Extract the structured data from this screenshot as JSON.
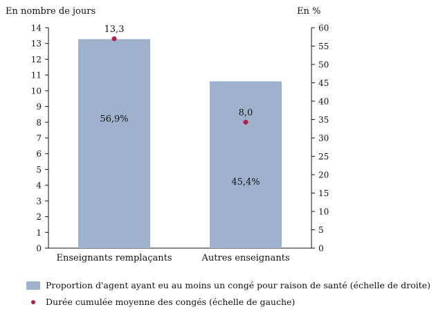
{
  "chart_data": {
    "type": "bar",
    "categories": [
      "Enseignants remplaçants",
      "Autres enseignants"
    ],
    "left_axis_label": "En nombre de jours",
    "right_axis_label": "En %",
    "left_ylim": [
      0,
      14
    ],
    "left_ticks": [
      "0",
      "1",
      "2",
      "3",
      "4",
      "5",
      "6",
      "7",
      "8",
      "9",
      "10",
      "11",
      "12",
      "13",
      "14"
    ],
    "right_ylim": [
      0,
      60
    ],
    "right_ticks": [
      "0",
      "5",
      "10",
      "15",
      "20",
      "25",
      "30",
      "35",
      "40",
      "45",
      "50",
      "55",
      "60"
    ],
    "series": [
      {
        "name": "Proportion d'agent ayant eu au moins un congé pour raison de santé (échelle de droite)",
        "type": "bar",
        "axis": "right",
        "values": [
          56.9,
          45.4
        ],
        "labels": [
          "56,9%",
          "45,4%"
        ],
        "color": "#9eb1cd"
      },
      {
        "name": "Durée cumulée moyenne des congés (échelle de gauche)",
        "type": "scatter",
        "axis": "left",
        "values": [
          13.3,
          8.0
        ],
        "labels": [
          "13,3",
          "8,0"
        ],
        "color": "#b81d4d"
      }
    ],
    "grid": false,
    "legend_position": "bottom-left"
  }
}
